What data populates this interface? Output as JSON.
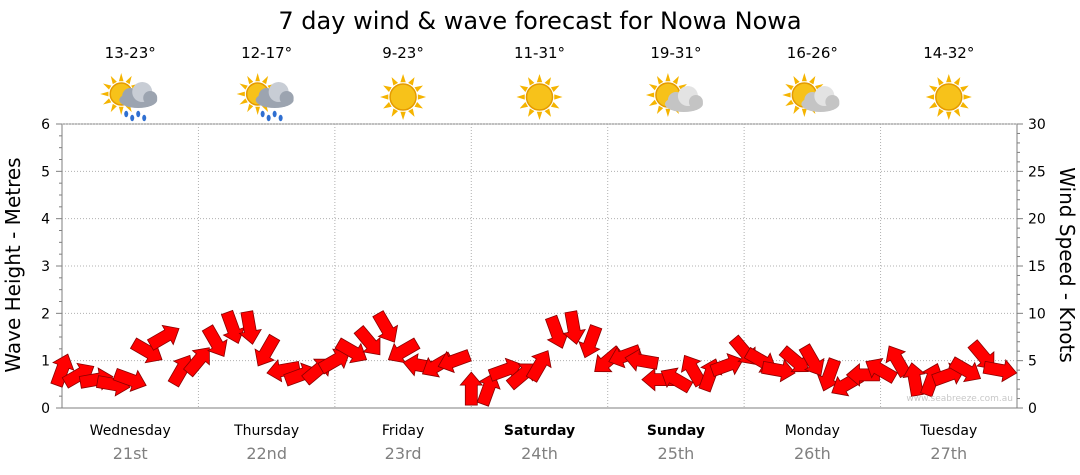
{
  "chart_data": {
    "type": "line",
    "title": "7 day wind & wave forecast for Nowa Nowa",
    "ylabel_left": "Wave Height - Metres",
    "ylabel_right": "Wind Speed - Knots",
    "ylim_left": [
      0,
      6
    ],
    "ylim_right": [
      0,
      30
    ],
    "yticks_left": [
      "0",
      "1",
      "2",
      "3",
      "4",
      "5",
      "6"
    ],
    "yticks_right": [
      "0",
      "5",
      "10",
      "15",
      "20",
      "25",
      "30"
    ],
    "grid": true,
    "days": [
      {
        "name": "Wednesday",
        "date": "21st",
        "temp": "13-23°",
        "icon": "rain-showers-icon",
        "bold": false
      },
      {
        "name": "Thursday",
        "date": "22nd",
        "temp": "12-17°",
        "icon": "rain-showers-icon",
        "bold": false
      },
      {
        "name": "Friday",
        "date": "23rd",
        "temp": "9-23°",
        "icon": "sunny-icon",
        "bold": false
      },
      {
        "name": "Saturday",
        "date": "24th",
        "temp": "11-31°",
        "icon": "sunny-icon",
        "bold": true
      },
      {
        "name": "Sunday",
        "date": "25th",
        "temp": "19-31°",
        "icon": "partly-cloudy-icon",
        "bold": true
      },
      {
        "name": "Monday",
        "date": "26th",
        "temp": "16-26°",
        "icon": "partly-cloudy-icon",
        "bold": false
      },
      {
        "name": "Tuesday",
        "date": "27th",
        "temp": "14-32°",
        "icon": "sunny-icon",
        "bold": false
      }
    ],
    "series": [
      {
        "unit": "knots",
        "color": "#ff0000",
        "x_hours": [
          0,
          3,
          6,
          9,
          12,
          15,
          18,
          21,
          24,
          27,
          30,
          33,
          36,
          39,
          42,
          45,
          48,
          51,
          54,
          57,
          60,
          63,
          66,
          69,
          72,
          75,
          78,
          81,
          84,
          87,
          90,
          93,
          96,
          99,
          102,
          105,
          108,
          111,
          114,
          117,
          120,
          123,
          126,
          129,
          132,
          135,
          138,
          141,
          144,
          147,
          150,
          153,
          156,
          159,
          162,
          165
        ],
        "values": [
          4,
          3.5,
          3,
          2.5,
          3,
          6,
          7.5,
          4,
          5,
          7,
          8.5,
          8.5,
          6,
          4,
          3.5,
          4,
          5,
          6,
          7,
          8.5,
          6,
          4.5,
          4.5,
          5,
          2,
          2,
          4,
          3.5,
          4.5,
          8,
          8.5,
          7,
          5,
          5.5,
          5,
          3,
          3,
          4,
          3.5,
          4.5,
          6,
          5,
          4,
          5,
          5,
          3.5,
          2.5,
          3.5,
          4,
          5,
          3,
          3,
          3.5,
          4,
          5.5,
          4
        ],
        "directions_deg": [
          200,
          240,
          260,
          280,
          290,
          300,
          240,
          210,
          220,
          330,
          340,
          350,
          30,
          80,
          250,
          230,
          240,
          300,
          320,
          330,
          60,
          100,
          60,
          70,
          180,
          200,
          250,
          230,
          210,
          340,
          350,
          20,
          50,
          70,
          100,
          90,
          120,
          150,
          200,
          250,
          320,
          300,
          280,
          310,
          330,
          20,
          60,
          90,
          120,
          150,
          170,
          200,
          250,
          300,
          320,
          280
        ]
      }
    ],
    "annotation": "www.seabreeze.com.au"
  }
}
